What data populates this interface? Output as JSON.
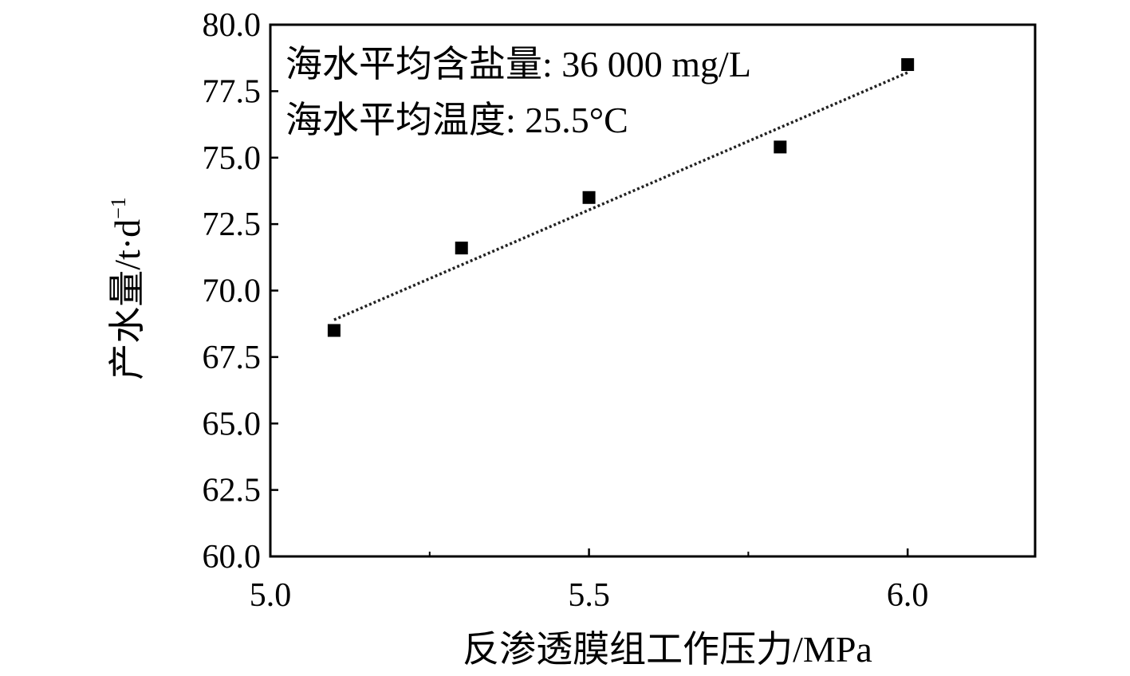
{
  "chart_data": {
    "type": "scatter",
    "xlabel": "反渗透膜组工作压力/MPa",
    "ylabel": "产水量/t·d",
    "ylabel_superscript": "−1",
    "xlim": [
      5.0,
      6.2
    ],
    "ylim": [
      60.0,
      80.0
    ],
    "x_ticks": [
      5.0,
      5.5,
      6.0
    ],
    "x_tick_labels": [
      "5.0",
      "5.5",
      "6.0"
    ],
    "x_minor_ticks": [
      5.25,
      5.75
    ],
    "y_ticks": [
      60.0,
      62.5,
      65.0,
      67.5,
      70.0,
      72.5,
      75.0,
      77.5,
      80.0
    ],
    "y_tick_labels": [
      "60.0",
      "62.5",
      "65.0",
      "67.5",
      "70.0",
      "72.5",
      "75.0",
      "77.5",
      "80.0"
    ],
    "annotations": [
      "海水平均含盐量: 36 000 mg/L",
      "海水平均温度: 25.5°C"
    ],
    "series": [
      {
        "x": [
          5.1,
          5.3,
          5.5,
          5.8,
          6.0
        ],
        "y": [
          68.5,
          71.6,
          73.5,
          75.4,
          78.5
        ],
        "marker": "square",
        "color": "#000000"
      }
    ],
    "trendline": {
      "style": "dotted",
      "x": [
        5.1,
        6.0
      ],
      "y": [
        68.9,
        78.2
      ]
    },
    "grid": false
  }
}
